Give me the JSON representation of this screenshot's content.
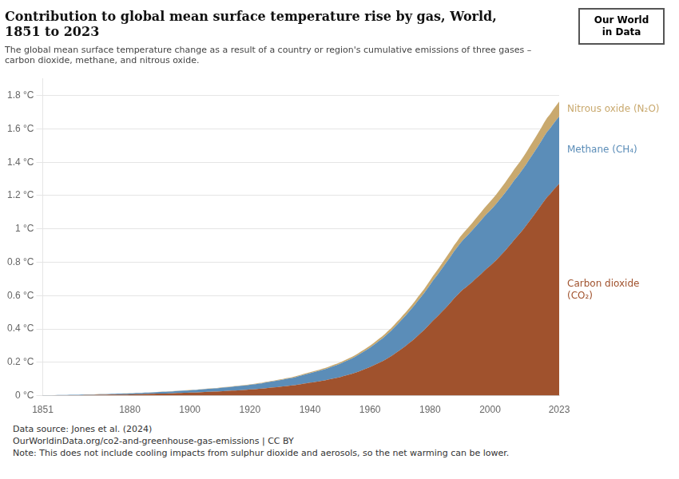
{
  "chart_data": {
    "type": "area",
    "stacked": true,
    "title": "Contribution to global mean surface temperature rise by gas, World,\n1851 to 2023",
    "subtitle": "The global mean surface temperature change as a result of a country or region's cumulative emissions of three gases –\ncarbon dioxide, methane, and nitrous oxide.",
    "annotations": [
      "Data source: Jones et al. (2024)",
      "OurWorldinData.org/co2-and-greenhouse-gas-emissions | CC BY",
      "Note: This does not include cooling impacts from sulphur dioxide and aerosols, so the net warming can be lower.",
      "Our World\nin Data"
    ],
    "grid": "y",
    "xlim": [
      1851,
      2023
    ],
    "xticks": [
      1851,
      1880,
      1900,
      1920,
      1940,
      1960,
      1980,
      2000,
      2023
    ],
    "ylim": [
      0,
      1.9
    ],
    "yticks": [
      {
        "value": 0,
        "label": "0 °C"
      },
      {
        "value": 0.2,
        "label": "0.2 °C"
      },
      {
        "value": 0.4,
        "label": "0.4 °C"
      },
      {
        "value": 0.6,
        "label": "0.6 °C"
      },
      {
        "value": 0.8,
        "label": "0.8 °C"
      },
      {
        "value": 1.0,
        "label": "1 °C"
      },
      {
        "value": 1.2,
        "label": "1.2 °C"
      },
      {
        "value": 1.4,
        "label": "1.4 °C"
      },
      {
        "value": 1.6,
        "label": "1.6 °C"
      },
      {
        "value": 1.8,
        "label": "1.8 °C"
      }
    ],
    "x": [
      1851,
      1852,
      1853,
      1854,
      1855,
      1856,
      1857,
      1858,
      1859,
      1860,
      1861,
      1862,
      1863,
      1864,
      1865,
      1866,
      1867,
      1868,
      1869,
      1870,
      1871,
      1872,
      1873,
      1874,
      1875,
      1876,
      1877,
      1878,
      1879,
      1880,
      1881,
      1882,
      1883,
      1884,
      1885,
      1886,
      1887,
      1888,
      1889,
      1890,
      1891,
      1892,
      1893,
      1894,
      1895,
      1896,
      1897,
      1898,
      1899,
      1900,
      1901,
      1902,
      1903,
      1904,
      1905,
      1906,
      1907,
      1908,
      1909,
      1910,
      1911,
      1912,
      1913,
      1914,
      1915,
      1916,
      1917,
      1918,
      1919,
      1920,
      1921,
      1922,
      1923,
      1924,
      1925,
      1926,
      1927,
      1928,
      1929,
      1930,
      1931,
      1932,
      1933,
      1934,
      1935,
      1936,
      1937,
      1938,
      1939,
      1940,
      1941,
      1942,
      1943,
      1944,
      1945,
      1946,
      1947,
      1948,
      1949,
      1950,
      1951,
      1952,
      1953,
      1954,
      1955,
      1956,
      1957,
      1958,
      1959,
      1960,
      1961,
      1962,
      1963,
      1964,
      1965,
      1966,
      1967,
      1968,
      1969,
      1970,
      1971,
      1972,
      1973,
      1974,
      1975,
      1976,
      1977,
      1978,
      1979,
      1980,
      1981,
      1982,
      1983,
      1984,
      1985,
      1986,
      1987,
      1988,
      1989,
      1990,
      1991,
      1992,
      1993,
      1994,
      1995,
      1996,
      1997,
      1998,
      1999,
      2000,
      2001,
      2002,
      2003,
      2004,
      2005,
      2006,
      2007,
      2008,
      2009,
      2010,
      2011,
      2012,
      2013,
      2014,
      2015,
      2016,
      2017,
      2018,
      2019,
      2020,
      2021,
      2022,
      2023
    ],
    "series": [
      {
        "name": "Carbon dioxide\n(CO₂)",
        "color": "#A0522D",
        "values": [
          0.001,
          0.001,
          0.001,
          0.001,
          0.002,
          0.002,
          0.002,
          0.002,
          0.002,
          0.003,
          0.003,
          0.003,
          0.003,
          0.003,
          0.004,
          0.004,
          0.004,
          0.004,
          0.005,
          0.005,
          0.005,
          0.005,
          0.006,
          0.006,
          0.006,
          0.007,
          0.007,
          0.007,
          0.007,
          0.008,
          0.008,
          0.009,
          0.009,
          0.009,
          0.01,
          0.01,
          0.011,
          0.011,
          0.012,
          0.012,
          0.013,
          0.013,
          0.014,
          0.014,
          0.015,
          0.016,
          0.016,
          0.017,
          0.017,
          0.018,
          0.019,
          0.019,
          0.02,
          0.021,
          0.022,
          0.023,
          0.023,
          0.024,
          0.025,
          0.026,
          0.027,
          0.028,
          0.029,
          0.03,
          0.031,
          0.032,
          0.033,
          0.034,
          0.035,
          0.037,
          0.038,
          0.039,
          0.041,
          0.042,
          0.044,
          0.046,
          0.048,
          0.05,
          0.051,
          0.053,
          0.055,
          0.057,
          0.059,
          0.061,
          0.063,
          0.066,
          0.069,
          0.072,
          0.075,
          0.078,
          0.08,
          0.083,
          0.086,
          0.089,
          0.092,
          0.096,
          0.1,
          0.104,
          0.107,
          0.111,
          0.116,
          0.121,
          0.126,
          0.131,
          0.137,
          0.143,
          0.15,
          0.157,
          0.164,
          0.172,
          0.18,
          0.188,
          0.197,
          0.205,
          0.215,
          0.226,
          0.236,
          0.248,
          0.261,
          0.273,
          0.287,
          0.3,
          0.315,
          0.329,
          0.344,
          0.361,
          0.377,
          0.393,
          0.412,
          0.431,
          0.45,
          0.467,
          0.485,
          0.504,
          0.523,
          0.542,
          0.562,
          0.583,
          0.601,
          0.62,
          0.637,
          0.651,
          0.666,
          0.681,
          0.698,
          0.714,
          0.73,
          0.748,
          0.764,
          0.779,
          0.795,
          0.812,
          0.831,
          0.85,
          0.87,
          0.891,
          0.912,
          0.934,
          0.954,
          0.975,
          0.997,
          1.02,
          1.044,
          1.068,
          1.092,
          1.117,
          1.142,
          1.168,
          1.192,
          1.21,
          1.232,
          1.251,
          1.27
        ]
      },
      {
        "name": "Methane (CH₄)",
        "color": "#5B8DB8",
        "values": [
          0.001,
          0.001,
          0.001,
          0.001,
          0.001,
          0.002,
          0.002,
          0.002,
          0.002,
          0.002,
          0.002,
          0.002,
          0.002,
          0.003,
          0.003,
          0.003,
          0.003,
          0.003,
          0.003,
          0.004,
          0.004,
          0.004,
          0.004,
          0.005,
          0.005,
          0.005,
          0.005,
          0.006,
          0.006,
          0.006,
          0.006,
          0.007,
          0.007,
          0.007,
          0.008,
          0.008,
          0.008,
          0.009,
          0.009,
          0.01,
          0.01,
          0.01,
          0.011,
          0.011,
          0.012,
          0.012,
          0.013,
          0.013,
          0.014,
          0.014,
          0.015,
          0.015,
          0.016,
          0.016,
          0.017,
          0.018,
          0.018,
          0.019,
          0.019,
          0.02,
          0.021,
          0.022,
          0.022,
          0.023,
          0.024,
          0.025,
          0.026,
          0.026,
          0.027,
          0.028,
          0.029,
          0.03,
          0.031,
          0.032,
          0.034,
          0.035,
          0.036,
          0.037,
          0.039,
          0.04,
          0.041,
          0.043,
          0.044,
          0.045,
          0.047,
          0.049,
          0.051,
          0.053,
          0.055,
          0.057,
          0.059,
          0.061,
          0.063,
          0.065,
          0.067,
          0.069,
          0.072,
          0.074,
          0.077,
          0.08,
          0.083,
          0.086,
          0.089,
          0.092,
          0.096,
          0.1,
          0.104,
          0.108,
          0.112,
          0.116,
          0.121,
          0.126,
          0.131,
          0.136,
          0.141,
          0.147,
          0.152,
          0.159,
          0.165,
          0.171,
          0.177,
          0.183,
          0.189,
          0.196,
          0.202,
          0.209,
          0.215,
          0.221,
          0.228,
          0.234,
          0.241,
          0.247,
          0.253,
          0.259,
          0.265,
          0.271,
          0.277,
          0.283,
          0.288,
          0.293,
          0.297,
          0.301,
          0.305,
          0.309,
          0.313,
          0.317,
          0.321,
          0.325,
          0.328,
          0.331,
          0.334,
          0.338,
          0.341,
          0.344,
          0.347,
          0.35,
          0.353,
          0.357,
          0.359,
          0.361,
          0.364,
          0.367,
          0.371,
          0.374,
          0.377,
          0.38,
          0.384,
          0.388,
          0.391,
          0.393,
          0.397,
          0.401,
          0.404
        ]
      },
      {
        "name": "Nitrous oxide (N₂O)",
        "color": "#C9A96E",
        "values": [
          0.0002,
          0.0002,
          0.0002,
          0.0002,
          0.0003,
          0.0003,
          0.0003,
          0.0003,
          0.0003,
          0.0003,
          0.0003,
          0.0003,
          0.0004,
          0.0004,
          0.0004,
          0.0004,
          0.0004,
          0.0005,
          0.0005,
          0.0005,
          0.0005,
          0.0005,
          0.0006,
          0.0006,
          0.0006,
          0.0006,
          0.0007,
          0.0007,
          0.0007,
          0.0007,
          0.0008,
          0.0008,
          0.0008,
          0.0009,
          0.0009,
          0.0009,
          0.001,
          0.001,
          0.0011,
          0.0011,
          0.0011,
          0.0012,
          0.0012,
          0.0013,
          0.0013,
          0.0014,
          0.0014,
          0.0015,
          0.0015,
          0.0016,
          0.0016,
          0.0017,
          0.0017,
          0.0018,
          0.0018,
          0.0019,
          0.002,
          0.002,
          0.0021,
          0.0022,
          0.0022,
          0.0023,
          0.0024,
          0.0025,
          0.0025,
          0.0026,
          0.0027,
          0.0028,
          0.0029,
          0.003,
          0.0031,
          0.0032,
          0.0033,
          0.0034,
          0.0035,
          0.0036,
          0.0037,
          0.0038,
          0.004,
          0.0041,
          0.0042,
          0.0044,
          0.0045,
          0.0047,
          0.0048,
          0.005,
          0.0052,
          0.0054,
          0.0056,
          0.0058,
          0.006,
          0.0062,
          0.0064,
          0.0066,
          0.0068,
          0.0071,
          0.0073,
          0.0076,
          0.0079,
          0.0082,
          0.0085,
          0.0088,
          0.0091,
          0.0094,
          0.0098,
          0.0102,
          0.0106,
          0.011,
          0.0114,
          0.0118,
          0.0123,
          0.0128,
          0.0133,
          0.0138,
          0.0144,
          0.015,
          0.0156,
          0.0163,
          0.017,
          0.0177,
          0.0184,
          0.0191,
          0.0199,
          0.0207,
          0.0216,
          0.0225,
          0.0234,
          0.0243,
          0.0253,
          0.0263,
          0.0274,
          0.0285,
          0.0296,
          0.0308,
          0.032,
          0.0333,
          0.0346,
          0.036,
          0.0374,
          0.0388,
          0.0402,
          0.0416,
          0.0431,
          0.0445,
          0.046,
          0.0475,
          0.049,
          0.0505,
          0.052,
          0.0535,
          0.055,
          0.0565,
          0.058,
          0.0595,
          0.061,
          0.0625,
          0.0641,
          0.0657,
          0.0672,
          0.0687,
          0.0703,
          0.0718,
          0.0734,
          0.075,
          0.0766,
          0.0783,
          0.08,
          0.0817,
          0.0834,
          0.085,
          0.0867,
          0.0884,
          0.09
        ]
      }
    ]
  }
}
